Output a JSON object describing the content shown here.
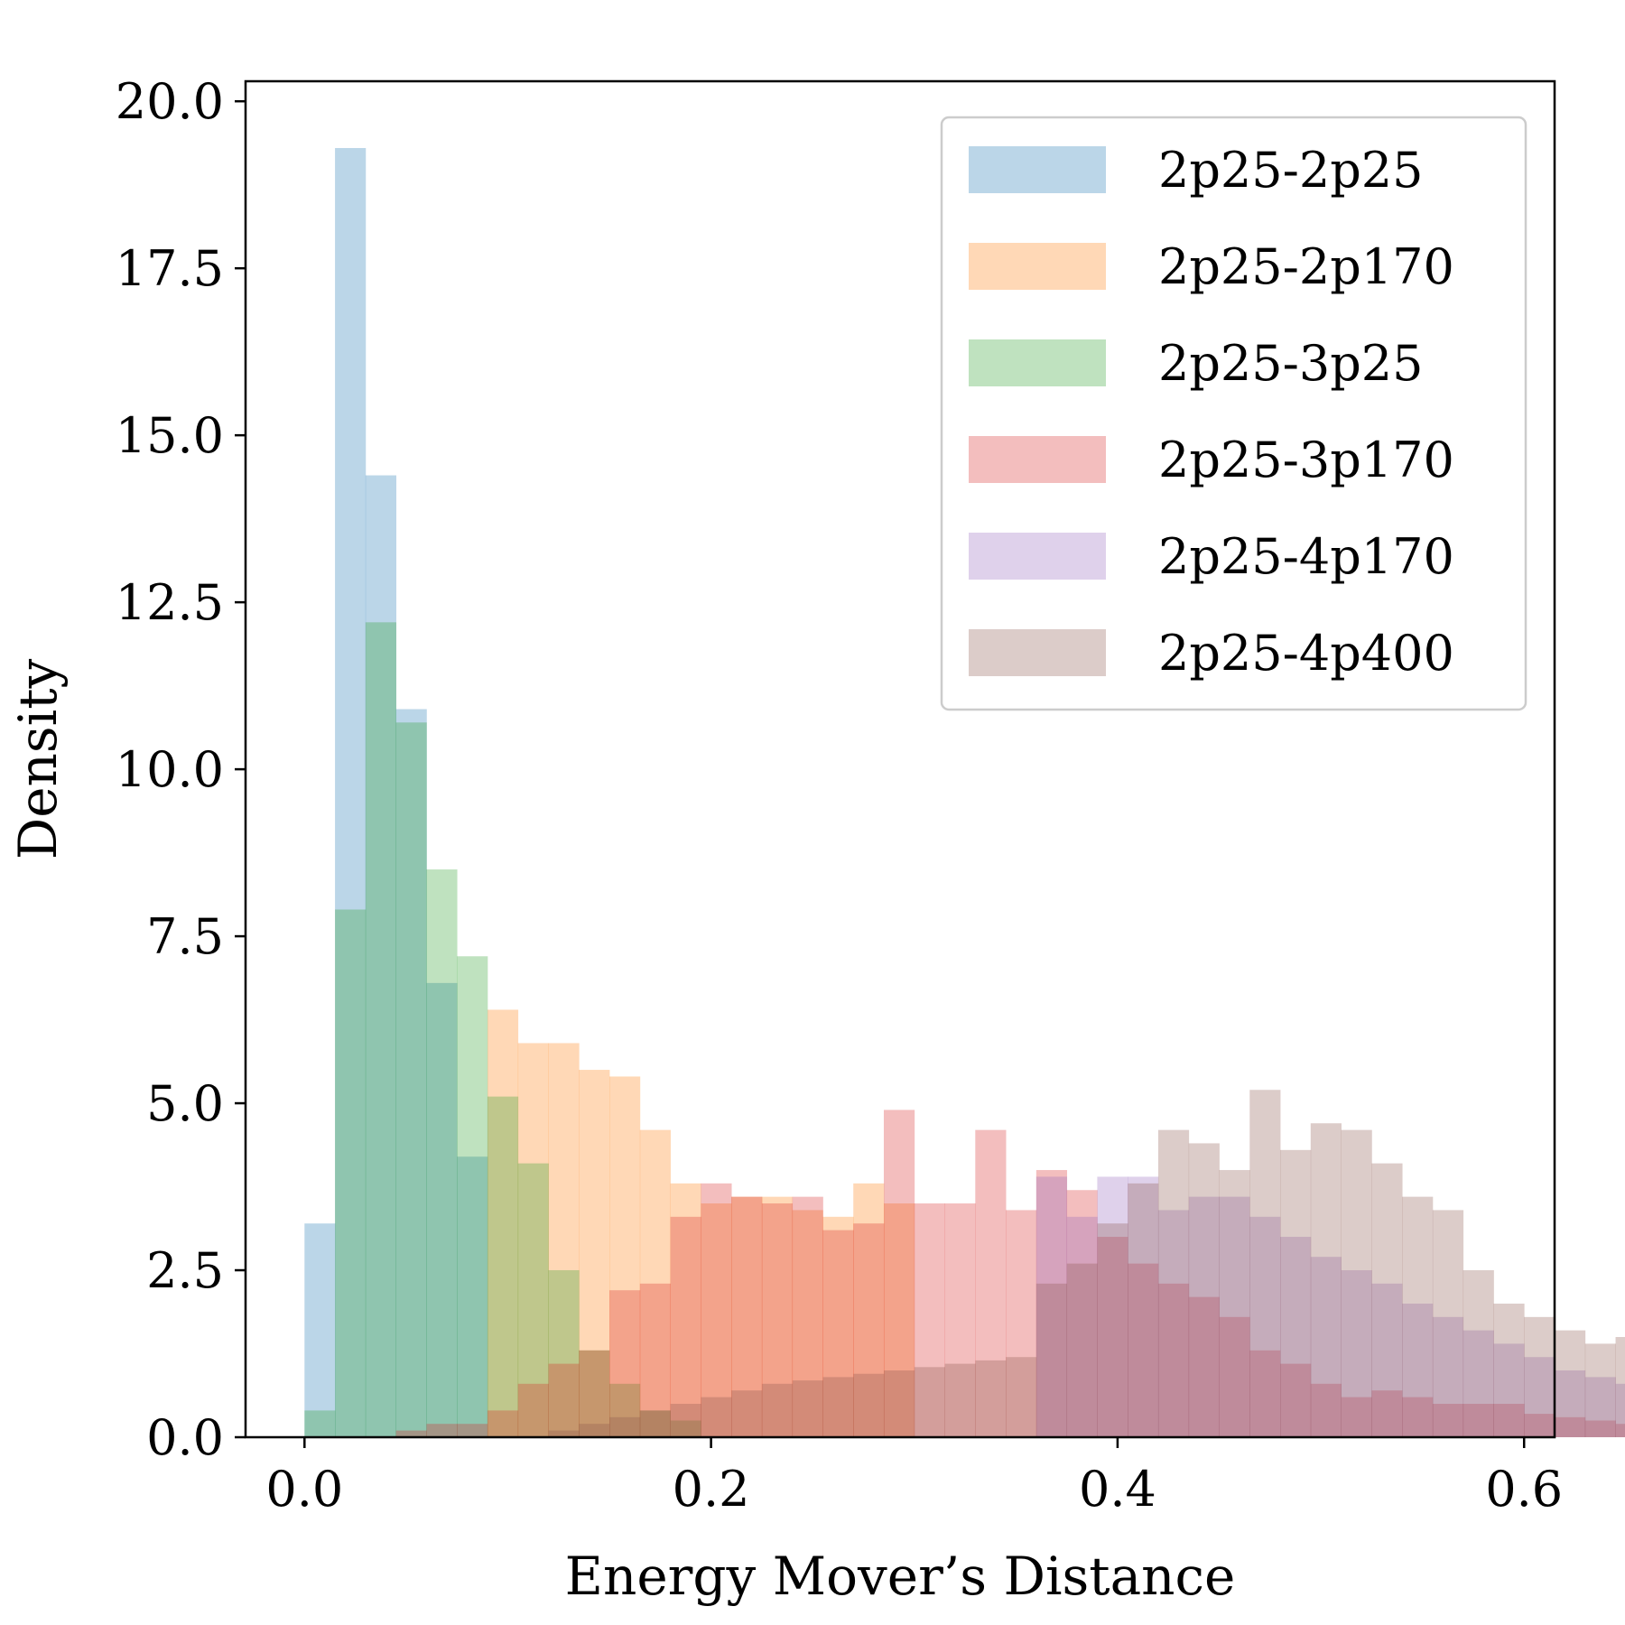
{
  "chart_data": {
    "type": "histogram",
    "xlabel": "Energy Mover’s Distance",
    "ylabel": "Density",
    "xlim": [
      -0.029,
      0.615
    ],
    "ylim": [
      0,
      20.3
    ],
    "x_ticks": [
      0.0,
      0.2,
      0.4,
      0.6
    ],
    "x_tick_labels": [
      "0.0",
      "0.2",
      "0.4",
      "0.6"
    ],
    "y_ticks": [
      0.0,
      2.5,
      5.0,
      7.5,
      10.0,
      12.5,
      15.0,
      17.5,
      20.0
    ],
    "y_tick_labels": [
      "0.0",
      "2.5",
      "5.0",
      "7.5",
      "10.0",
      "12.5",
      "15.0",
      "17.5",
      "20.0"
    ],
    "bin_width": 0.015,
    "bin_start": 0.0,
    "legend_position": "top-right",
    "grid": false,
    "alpha": 0.3,
    "series": [
      {
        "name": "2p25-2p25",
        "color": "#1f77b4",
        "values": [
          3.2,
          19.3,
          14.4,
          10.9,
          6.8,
          4.2
        ]
      },
      {
        "name": "2p25-2p170",
        "color": "#ff7f0e",
        "values": [
          0,
          0,
          0,
          0,
          0,
          0,
          6.4,
          5.9,
          5.9,
          5.5,
          5.4,
          4.6,
          3.8,
          3.5,
          3.6,
          3.6,
          3.4,
          3.3,
          3.8,
          3.5
        ]
      },
      {
        "name": "2p25-3p25",
        "color": "#2ca02c",
        "values": [
          0.4,
          7.9,
          12.2,
          10.7,
          8.5,
          7.2,
          5.1,
          4.1,
          2.5,
          1.3,
          0.8,
          0.4,
          0.25
        ]
      },
      {
        "name": "2p25-3p170",
        "color": "#d62728",
        "values": [
          0,
          0,
          0,
          0.1,
          0.2,
          0.2,
          0.4,
          0.8,
          1.1,
          1.3,
          2.2,
          2.3,
          3.3,
          3.8,
          3.6,
          3.5,
          3.6,
          3.1,
          3.2,
          4.9,
          3.5,
          3.5,
          4.6,
          3.4,
          4.0,
          3.7,
          3.0,
          2.6,
          2.3,
          2.1,
          1.8,
          1.3,
          1.1,
          0.8,
          0.6,
          0.7,
          0.6,
          0.5,
          0.5,
          0.5,
          0.35,
          0.3,
          0.25,
          0.2
        ]
      },
      {
        "name": "2p25-4p170",
        "color": "#9467bd",
        "values": [
          0,
          0,
          0,
          0,
          0,
          0,
          0,
          0,
          0,
          0,
          0,
          0,
          0,
          0,
          0,
          0,
          0,
          0,
          0,
          0,
          0,
          0,
          0,
          0,
          3.9,
          3.3,
          3.9,
          3.9,
          3.4,
          3.6,
          3.6,
          3.3,
          3.0,
          2.7,
          2.5,
          2.3,
          2.0,
          1.8,
          1.6,
          1.4,
          1.2,
          1.0,
          0.9,
          0.8,
          0.7,
          0.6,
          0.5,
          0.4,
          0.35,
          0.3,
          0.3,
          0.25,
          0.2,
          0.2,
          0.15,
          0.15,
          0.1,
          0.1,
          0.1
        ]
      },
      {
        "name": "2p25-4p400",
        "color": "#8c564b",
        "values": [
          0,
          0,
          0,
          0,
          0,
          0,
          0,
          0,
          0.1,
          0.2,
          0.3,
          0.4,
          0.5,
          0.6,
          0.7,
          0.8,
          0.85,
          0.9,
          0.95,
          1.0,
          1.05,
          1.1,
          1.15,
          1.2,
          2.3,
          2.6,
          3.2,
          3.8,
          4.6,
          4.4,
          4.0,
          5.2,
          4.3,
          4.7,
          4.6,
          4.1,
          3.6,
          3.4,
          2.5,
          2.0,
          1.8,
          1.6,
          1.4,
          1.5,
          1.3,
          1.1,
          0.9,
          0.7,
          0.5,
          0.3,
          0.3,
          0.25,
          0.25,
          0.2,
          0.2,
          0.2,
          0.1,
          0.1,
          0.1
        ]
      }
    ]
  }
}
